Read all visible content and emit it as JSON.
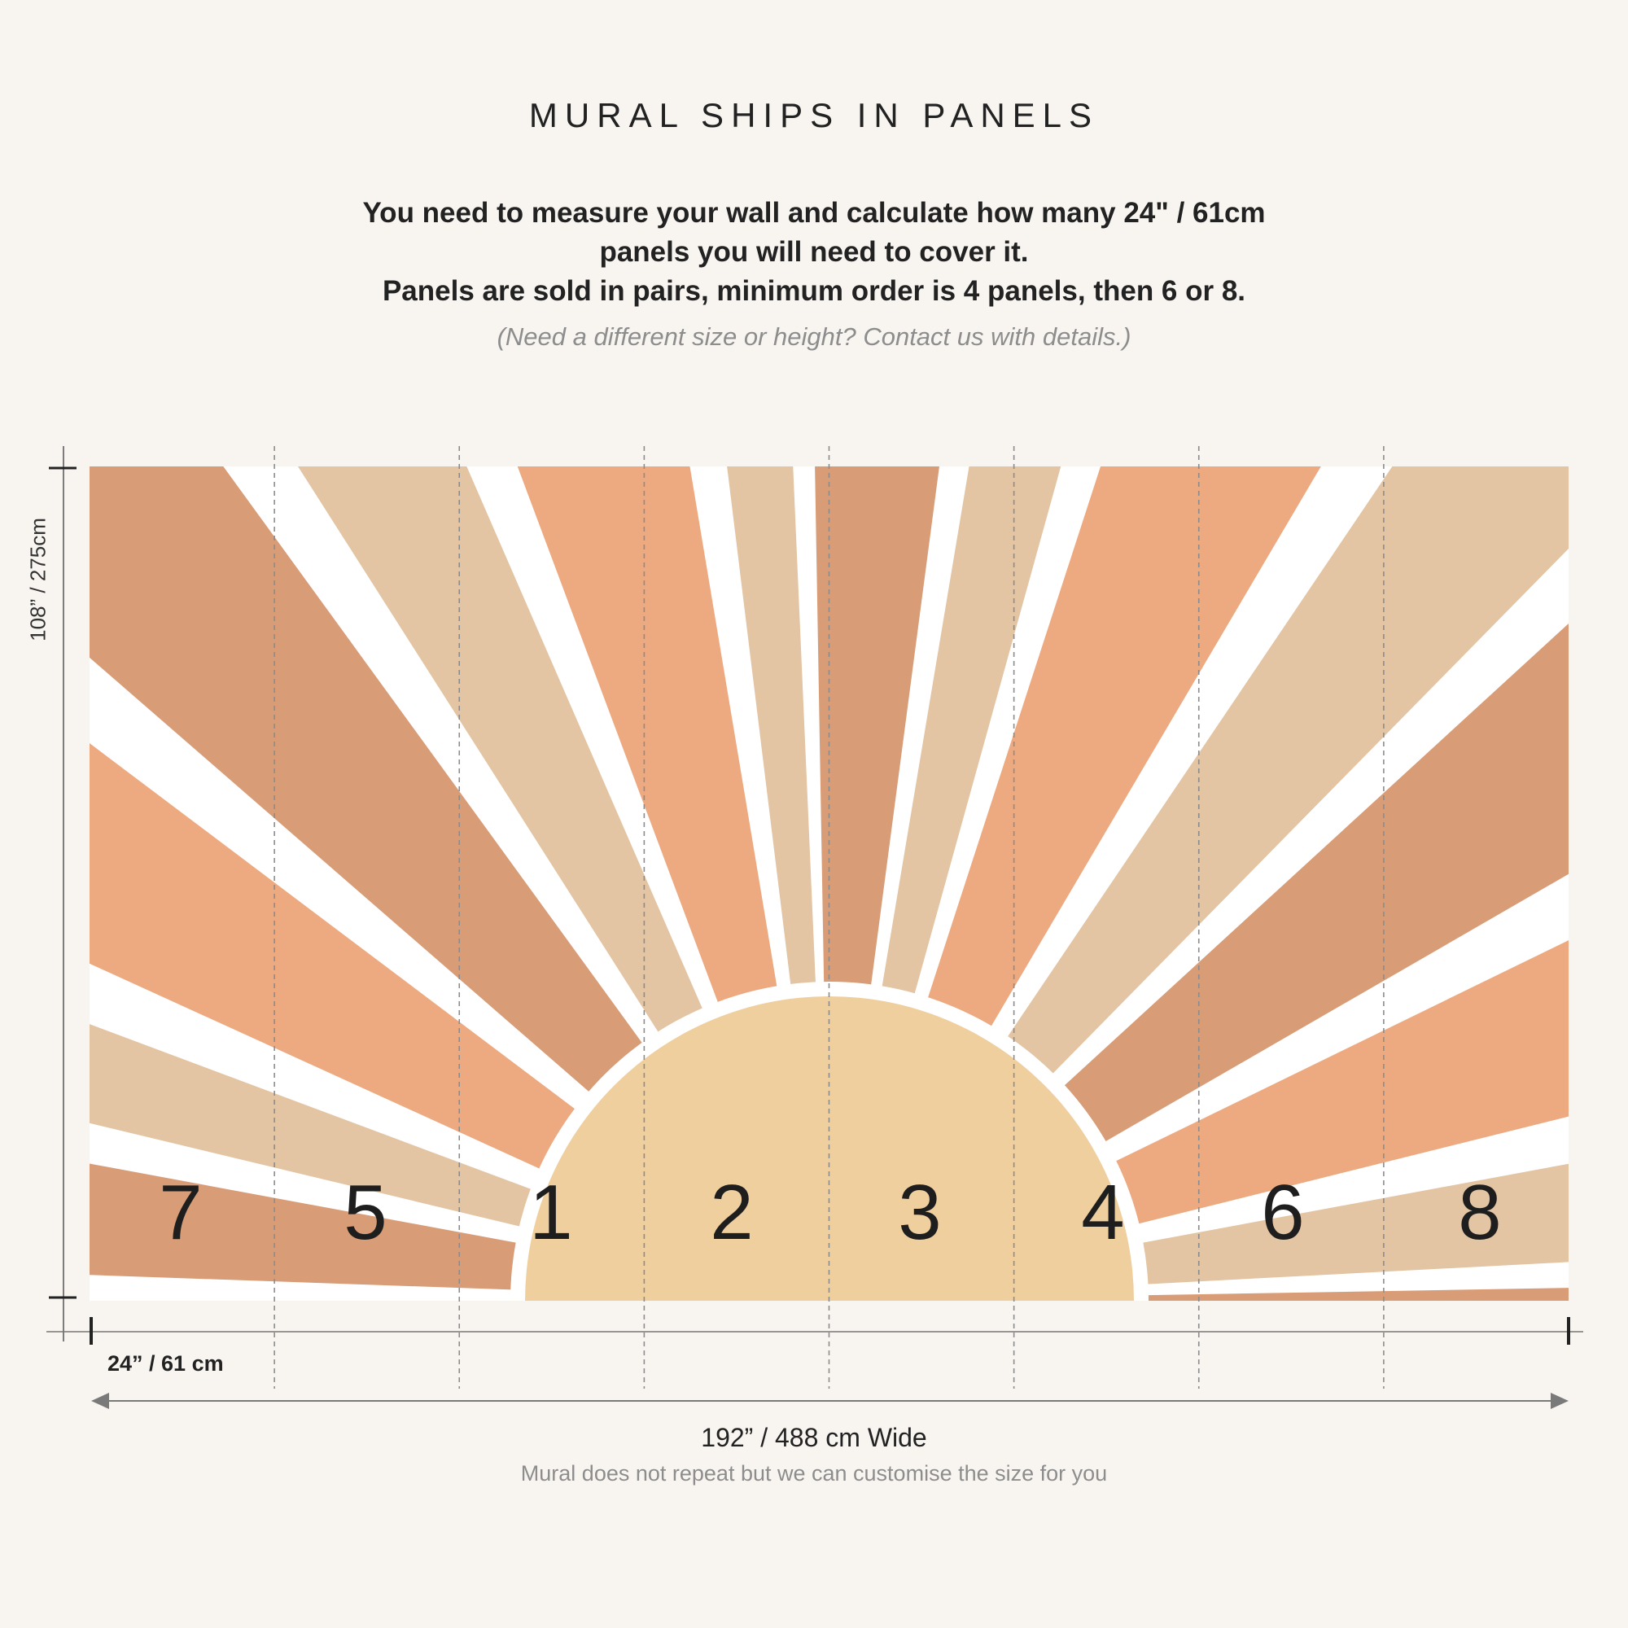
{
  "heading": "MURAL SHIPS IN PANELS",
  "intro": {
    "line1": "You need to measure your wall and calculate how many 24\" / 61cm",
    "line2": "panels you will need to cover it.",
    "line3": "Panels are sold in pairs, minimum order is 4 panels, then 6 or 8."
  },
  "note": "(Need a different size or height? Contact us with details.)",
  "height_label": "108” / 275cm",
  "panel_width_label": "24” / 61 cm",
  "total_width_label": "192” / 488 cm Wide",
  "footnote": "Mural does not repeat but we can customise the size for you",
  "panel_numbers": [
    "7",
    "5",
    "1",
    "2",
    "3",
    "4",
    "6",
    "8"
  ],
  "colors": {
    "background": "#f8f5f1",
    "sun": "#f0cf9f",
    "ray_terracotta": "#d89c77",
    "ray_peach": "#eda97f",
    "ray_sand": "#e3c4a3",
    "gap": "#ffffff",
    "guide": "#8c8c8c"
  }
}
